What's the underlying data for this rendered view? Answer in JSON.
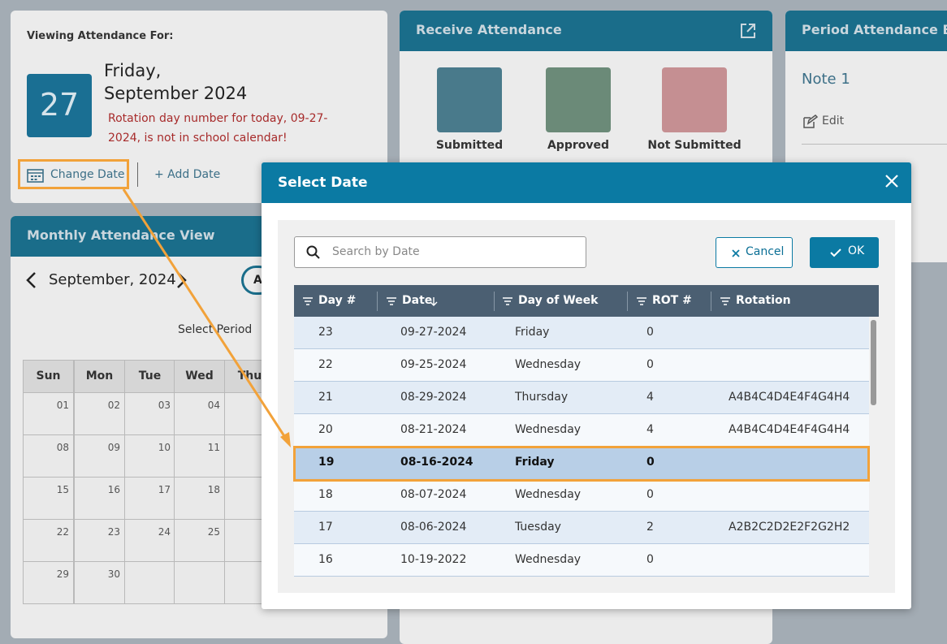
{
  "viewing": {
    "label": "Viewing Attendance For:",
    "day_number": "27",
    "day": "Friday,",
    "month": "September 2024",
    "warning": "Rotation day number for today, 09-27-2024, is not in school calendar!",
    "change_date": "Change Date",
    "add_date": "+ Add Date"
  },
  "monthly": {
    "title": "Monthly Attendance View",
    "month": "September, 2024",
    "all": "Al",
    "select_period": "Select Period",
    "weekdays": [
      "Sun",
      "Mon",
      "Tue",
      "Wed",
      "Thu"
    ],
    "weeks": [
      [
        "01",
        "02",
        "03",
        "04"
      ],
      [
        "08",
        "09",
        "10",
        "11"
      ],
      [
        "15",
        "16",
        "17",
        "18"
      ],
      [
        "22",
        "23",
        "24",
        "25"
      ],
      [
        "29",
        "30"
      ]
    ]
  },
  "receive": {
    "title": "Receive Attendance",
    "statuses": [
      "Submitted",
      "Approved",
      "Not Submitted"
    ]
  },
  "bulletin": {
    "title": "Period Attendance Bull",
    "note": "Note 1",
    "edit": "Edit"
  },
  "modal": {
    "title": "Select Date",
    "search_placeholder": "Search by Date",
    "cancel": "Cancel",
    "ok": "OK",
    "columns": [
      "Day #",
      "Date",
      "Day of Week",
      "ROT #",
      "Rotation"
    ],
    "rows": [
      {
        "day": 23,
        "date": "09-27-2024",
        "weekday": "Friday",
        "rot": 0
      },
      {
        "day": 22,
        "date": "09-25-2024",
        "weekday": "Wednesday",
        "rot": 0
      },
      {
        "day": 21,
        "date": "08-29-2024",
        "weekday": "Thursday",
        "rot": 4,
        "rotation": "A4B4C4D4E4F4G4H4"
      },
      {
        "day": 20,
        "date": "08-21-2024",
        "weekday": "Wednesday",
        "rot": 4,
        "rotation": "A4B4C4D4E4F4G4H4"
      },
      {
        "day": 19,
        "date": "08-16-2024",
        "weekday": "Friday",
        "rot": 0,
        "selected": true
      },
      {
        "day": 18,
        "date": "08-07-2024",
        "weekday": "Wednesday",
        "rot": 0
      },
      {
        "day": 17,
        "date": "08-06-2024",
        "weekday": "Tuesday",
        "rot": 2,
        "rotation": "A2B2C2D2E2F2G2H2"
      },
      {
        "day": 16,
        "date": "10-19-2022",
        "weekday": "Wednesday",
        "rot": 0
      }
    ]
  }
}
